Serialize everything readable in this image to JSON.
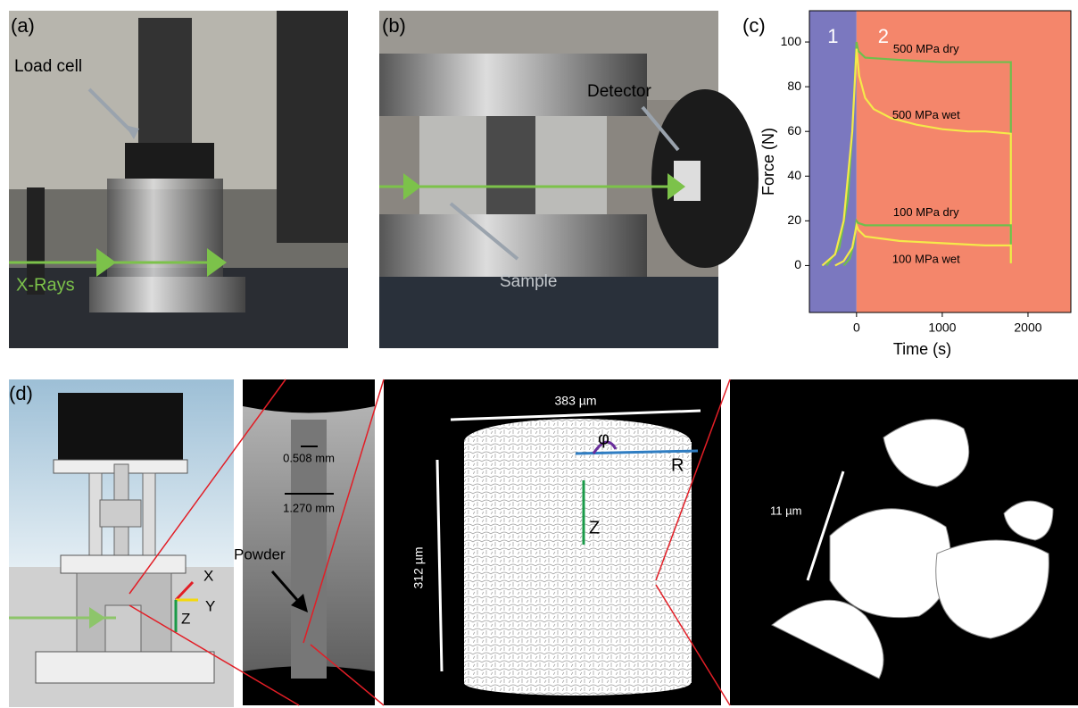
{
  "panel_a": {
    "label": "(a)",
    "load_cell": "Load cell",
    "x_rays": "X-Rays"
  },
  "panel_b": {
    "label": "(b)",
    "detector": "Detector",
    "sample": "Sample"
  },
  "chart_data": {
    "type": "line",
    "label": "(c)",
    "x_label": "Time (s)",
    "y_label": "Force (N)",
    "xlim": [
      -550,
      2500
    ],
    "ylim": [
      -21,
      114
    ],
    "xticks": [
      0,
      1000,
      2000
    ],
    "yticks": [
      0,
      20,
      40,
      60,
      80,
      100
    ],
    "regions": [
      {
        "label": "1",
        "color": "#7b78bf"
      },
      {
        "label": "2",
        "color": "#f4866b"
      }
    ],
    "region_boundary": 0,
    "series": [
      {
        "name": "500 MPa dry",
        "color": "#6fbf4c",
        "x": [
          -350,
          -200,
          -100,
          -50,
          0,
          20,
          100,
          500,
          1000,
          1500,
          1800,
          1800
        ],
        "values": [
          0,
          8,
          30,
          60,
          100,
          96,
          93,
          92,
          91,
          91,
          91,
          1
        ]
      },
      {
        "name": "500 MPa wet",
        "color": "#f5e94a",
        "x": [
          -400,
          -250,
          -150,
          -50,
          0,
          30,
          100,
          200,
          400,
          700,
          1000,
          1300,
          1500,
          1800,
          1800
        ],
        "values": [
          0,
          5,
          20,
          60,
          97,
          85,
          75,
          70,
          66,
          63,
          61,
          60,
          60,
          59,
          1
        ]
      },
      {
        "name": "100 MPa dry",
        "color": "#6fbf4c",
        "x": [
          -150,
          -80,
          -30,
          0,
          20,
          100,
          500,
          1000,
          1800,
          1800
        ],
        "values": [
          0,
          3,
          10,
          20,
          19,
          18,
          18,
          18,
          18,
          1
        ]
      },
      {
        "name": "100 MPa wet",
        "color": "#f5e94a",
        "x": [
          -250,
          -150,
          -50,
          0,
          20,
          100,
          500,
          1000,
          1500,
          1800,
          1800
        ],
        "values": [
          0,
          2,
          8,
          18,
          16,
          13,
          11,
          10,
          9,
          9,
          1
        ]
      }
    ]
  },
  "panel_d": {
    "label": "(d)",
    "axis_x": "X",
    "axis_y": "Y",
    "axis_z": "Z",
    "scale_small": "0.508 mm",
    "scale_large": "1.270 mm",
    "powder": "Powder",
    "width": "383 µm",
    "height": "312 µm",
    "phi": "φ",
    "radius": "R",
    "z": "Z",
    "particle_scale": "11 µm"
  }
}
